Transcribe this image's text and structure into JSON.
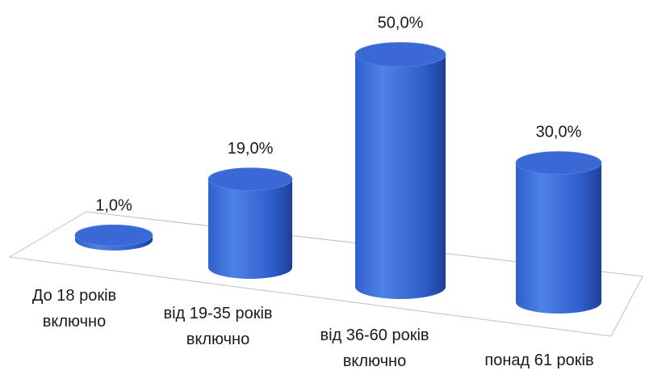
{
  "chart_data": {
    "type": "bar",
    "style": "3d-cylinder",
    "categories": [
      [
        "До 18 років",
        "включно"
      ],
      [
        "від 19-35 років",
        "включно"
      ],
      [
        "від 36-60 років",
        "включно"
      ],
      [
        "понад 61 років"
      ]
    ],
    "values": [
      1.0,
      19.0,
      50.0,
      30.0
    ],
    "value_labels": [
      "1,0%",
      "19,0%",
      "50,0%",
      "30,0%"
    ],
    "unit": "%",
    "ylim": [
      0,
      50
    ],
    "grid": false,
    "legend": "none",
    "colors": {
      "bar_light": "#4f82e6",
      "bar_mid": "#2f5fcc",
      "bar_dark": "#1e3f99",
      "bar_top": "#3a69d6",
      "floor_line": "#bfbfbf"
    }
  }
}
